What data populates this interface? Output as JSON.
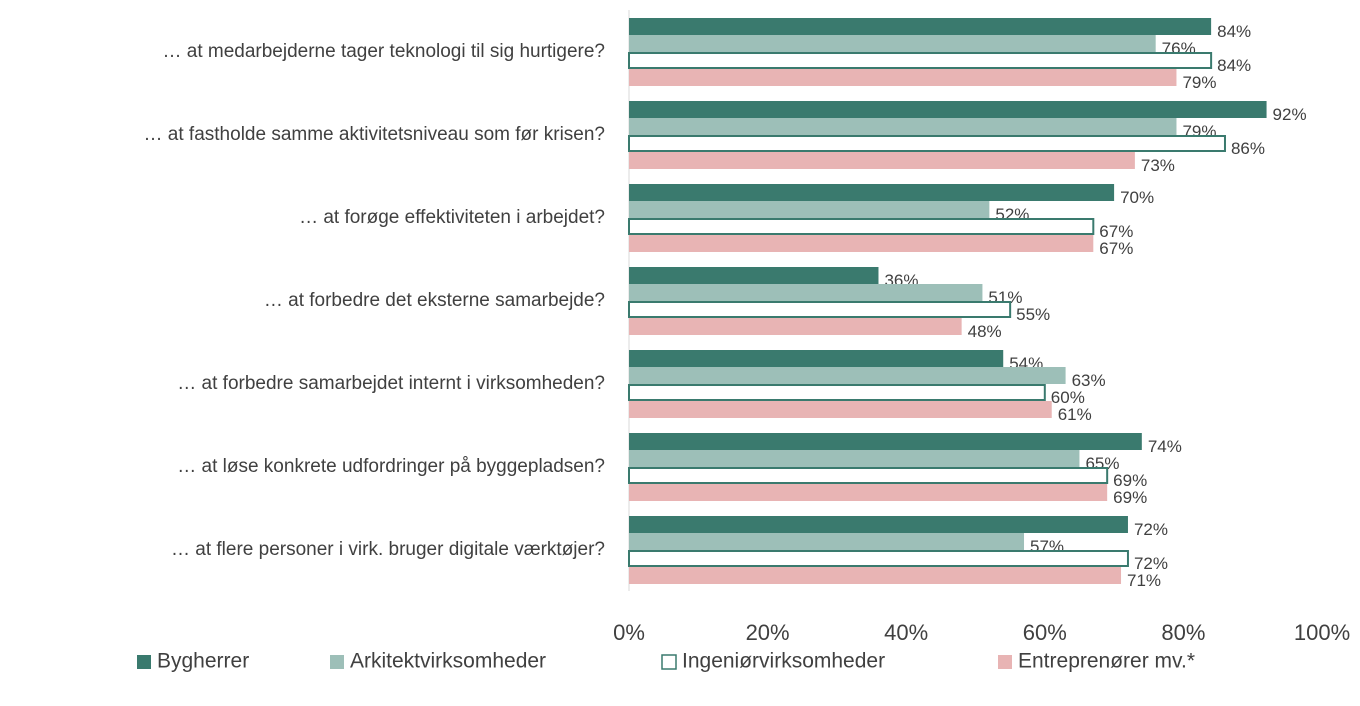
{
  "chart_data": {
    "type": "hbar",
    "categories": [
      "… at medarbejderne tager teknologi til sig hurtigere?",
      "… at fastholde samme aktivitetsniveau som før krisen?",
      "… at forøge effektiviteten i arbejdet?",
      "… at forbedre det eksterne samarbejde?",
      "… at forbedre samarbejdet internt i virksomheden?",
      "… at løse konkrete udfordringer på byggepladsen?",
      "… at flere personer i virk. bruger digitale værktøjer?"
    ],
    "series": [
      {
        "name": "Bygherrer",
        "color": "#3a7a6e",
        "values": [
          84,
          92,
          70,
          36,
          54,
          74,
          72
        ],
        "value_labels": [
          "84%",
          "92%",
          "70%",
          "36%",
          "54%",
          "74%",
          "72%"
        ]
      },
      {
        "name": "Arkitektvirksomheder",
        "color": "#9dbfb8",
        "values": [
          76,
          79,
          52,
          51,
          63,
          65,
          57
        ],
        "value_labels": [
          "76%",
          "79%",
          "52%",
          "51%",
          "63%",
          "65%",
          "57%"
        ]
      },
      {
        "name": "Ingeniørvirksomheder",
        "color": "#ffffff",
        "edgecolor": "#3a7a6e",
        "values": [
          84,
          86,
          67,
          55,
          60,
          69,
          72
        ],
        "value_labels": [
          "84%",
          "86%",
          "67%",
          "55%",
          "60%",
          "69%",
          "72%"
        ]
      },
      {
        "name": "Entreprenører mv.*",
        "color": "#e8b4b4",
        "values": [
          79,
          73,
          67,
          48,
          61,
          69,
          71
        ],
        "value_labels": [
          "79%",
          "73%",
          "67%",
          "48%",
          "61%",
          "69%",
          "71%"
        ]
      }
    ],
    "xlim": [
      0,
      100
    ],
    "xticks": [
      {
        "value": 0,
        "label": "0%"
      },
      {
        "value": 20,
        "label": "20%"
      },
      {
        "value": 40,
        "label": "40%"
      },
      {
        "value": 60,
        "label": "60%"
      },
      {
        "value": 80,
        "label": "80%"
      },
      {
        "value": 100,
        "label": "100%"
      }
    ],
    "legend": "bottom"
  }
}
